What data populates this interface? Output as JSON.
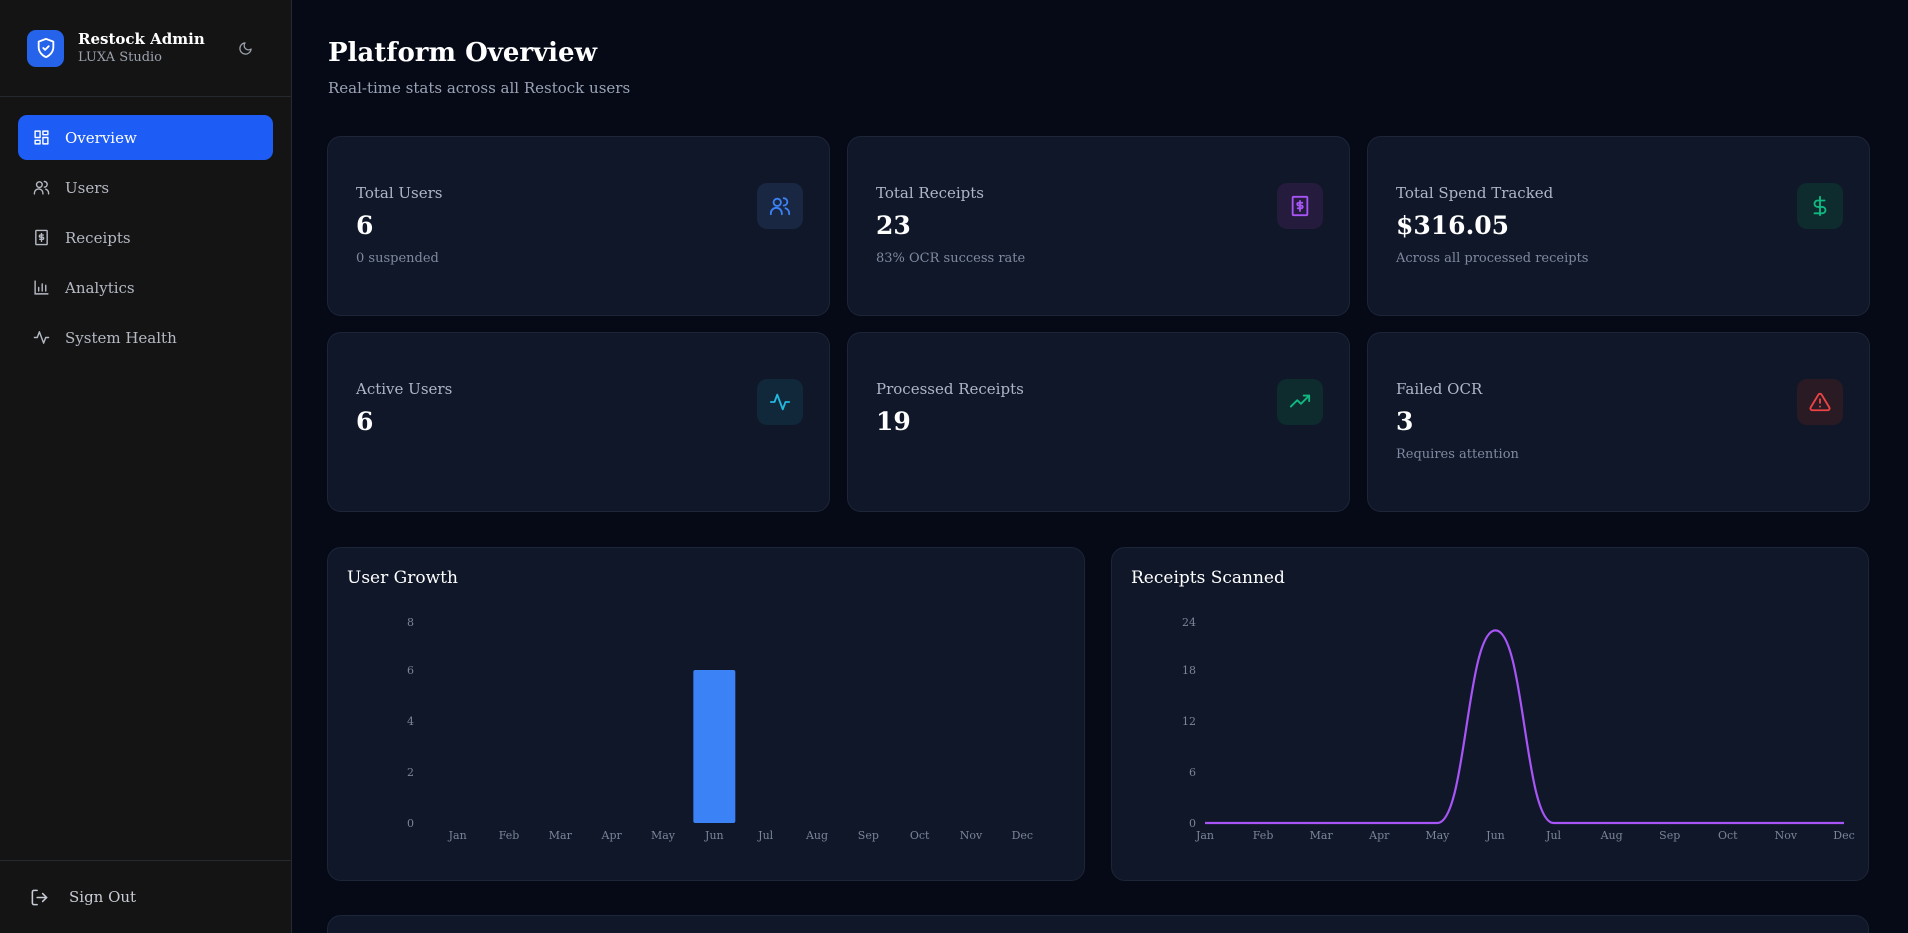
{
  "brand": {
    "name": "Restock Admin",
    "sub": "LUXA Studio"
  },
  "nav": {
    "items": [
      {
        "label": "Overview",
        "icon": "dashboard-icon",
        "active": true
      },
      {
        "label": "Users",
        "icon": "users-icon",
        "active": false
      },
      {
        "label": "Receipts",
        "icon": "receipt-icon",
        "active": false
      },
      {
        "label": "Analytics",
        "icon": "bar-chart-icon",
        "active": false
      },
      {
        "label": "System Health",
        "icon": "activity-icon",
        "active": false
      }
    ],
    "sign_out": "Sign Out"
  },
  "header": {
    "title": "Platform Overview",
    "subtitle": "Real-time stats across all Restock users"
  },
  "stats": [
    {
      "label": "Total Users",
      "value": "6",
      "note": "0 suspended",
      "icon": "users-icon",
      "color": "#3b82f6"
    },
    {
      "label": "Total Receipts",
      "value": "23",
      "note": "83% OCR success rate",
      "icon": "receipt-icon",
      "color": "#a855f7"
    },
    {
      "label": "Total Spend Tracked",
      "value": "$316.05",
      "note": "Across all processed receipts",
      "icon": "dollar-icon",
      "color": "#10b981"
    },
    {
      "label": "Active Users",
      "value": "6",
      "note": "",
      "icon": "activity-icon",
      "color": "#22b8e0"
    },
    {
      "label": "Processed Receipts",
      "value": "19",
      "note": "",
      "icon": "trending-up-icon",
      "color": "#10b981"
    },
    {
      "label": "Failed OCR",
      "value": "3",
      "note": "Requires attention",
      "icon": "alert-triangle-icon",
      "color": "#ef4444"
    }
  ],
  "chart_data": [
    {
      "type": "bar",
      "title": "User Growth",
      "categories": [
        "Jan",
        "Feb",
        "Mar",
        "Apr",
        "May",
        "Jun",
        "Jul",
        "Aug",
        "Sep",
        "Oct",
        "Nov",
        "Dec"
      ],
      "values": [
        0,
        0,
        0,
        0,
        0,
        6,
        0,
        0,
        0,
        0,
        0,
        0
      ],
      "yticks": [
        "0",
        "2",
        "4",
        "6",
        "8"
      ],
      "ylim": [
        0,
        8
      ],
      "color": "#3b82f6"
    },
    {
      "type": "line",
      "title": "Receipts Scanned",
      "categories": [
        "Jan",
        "Feb",
        "Mar",
        "Apr",
        "May",
        "Jun",
        "Jul",
        "Aug",
        "Sep",
        "Oct",
        "Nov",
        "Dec"
      ],
      "values": [
        0,
        0,
        0,
        0,
        0,
        23,
        0,
        0,
        0,
        0,
        0,
        0
      ],
      "yticks": [
        "0",
        "6",
        "12",
        "18",
        "24"
      ],
      "ylim": [
        0,
        24
      ],
      "color": "#a855f7"
    }
  ]
}
